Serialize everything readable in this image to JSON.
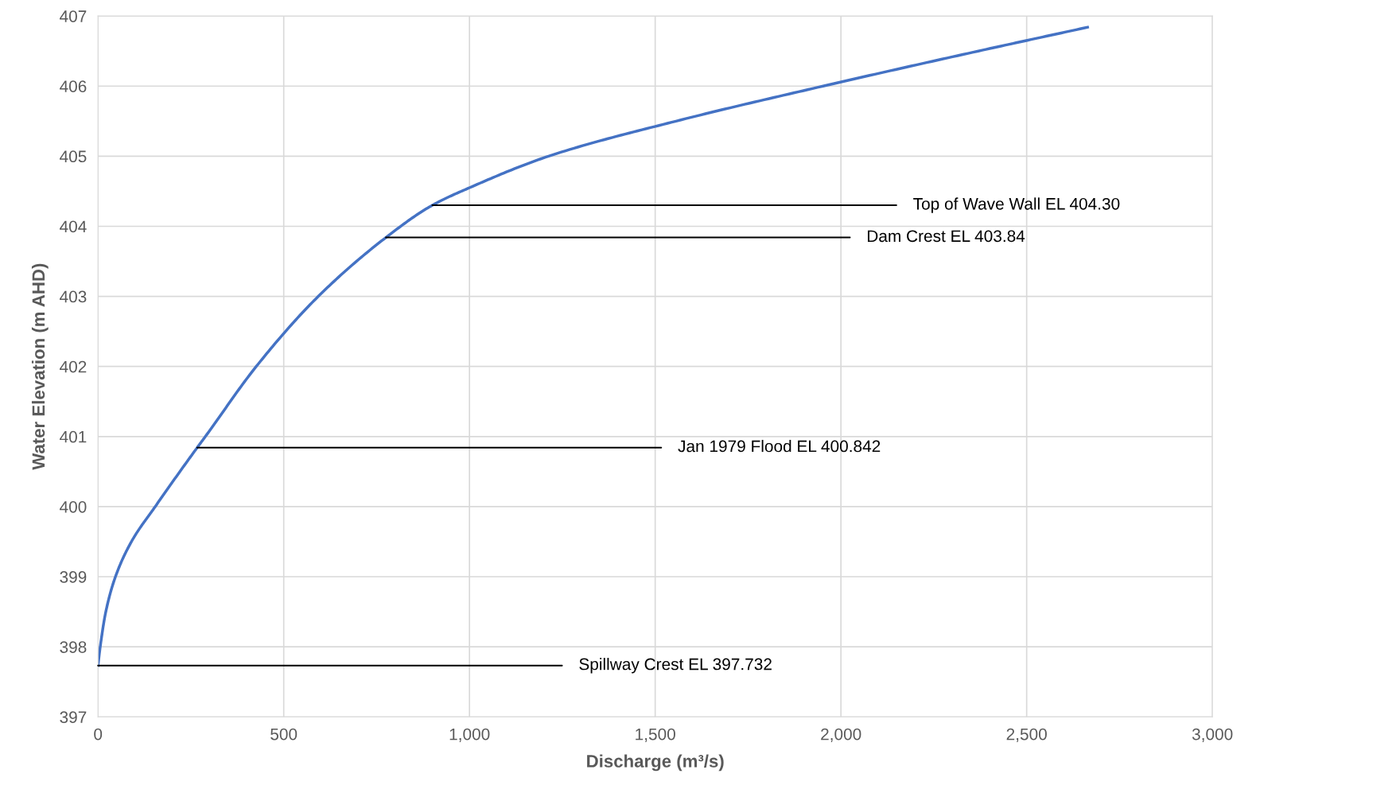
{
  "chart_data": {
    "type": "line",
    "xlabel": "Discharge (m³/s)",
    "ylabel": "Water Elevation (m AHD)",
    "series": [
      {
        "color": "#4472c4",
        "x": [
          0,
          6,
          21,
          47,
          90,
          154,
          267,
          289,
          426,
          593,
          775,
          900,
          1000,
          1213,
          1556,
          1952,
          2370,
          2664
        ],
        "values": [
          397.732,
          398,
          398.5,
          399,
          399.5,
          400,
          400.842,
          401,
          402,
          403,
          403.84,
          404.3,
          404.55,
          405,
          405.5,
          406,
          406.5,
          406.84
        ]
      }
    ],
    "annotations": [
      {
        "text": "Top of Wave Wall EL 404.30",
        "x": 900,
        "y": 404.3
      },
      {
        "text": "Dam Crest EL 403.84",
        "x": 775,
        "y": 403.84
      },
      {
        "text": "Jan 1979 Flood EL 400.842",
        "x": 267,
        "y": 400.842
      },
      {
        "text": "Spillway Crest EL 397.732",
        "x": 0,
        "y": 397.732
      }
    ],
    "xlim": [
      0,
      3000
    ],
    "ylim": [
      397,
      407
    ],
    "xticks": [
      0,
      500,
      {
        "value": 1000,
        "label": "1,000"
      },
      {
        "value": 1500,
        "label": "1,500"
      },
      {
        "value": 2000,
        "label": "2,000"
      },
      {
        "value": 2500,
        "label": "2,500"
      },
      {
        "value": 3000,
        "label": "3,000"
      }
    ],
    "yticks": [
      397,
      398,
      399,
      400,
      401,
      402,
      403,
      404,
      405,
      406,
      407
    ],
    "grid": true,
    "legend": false,
    "marker": "none",
    "line_style": "solid"
  }
}
